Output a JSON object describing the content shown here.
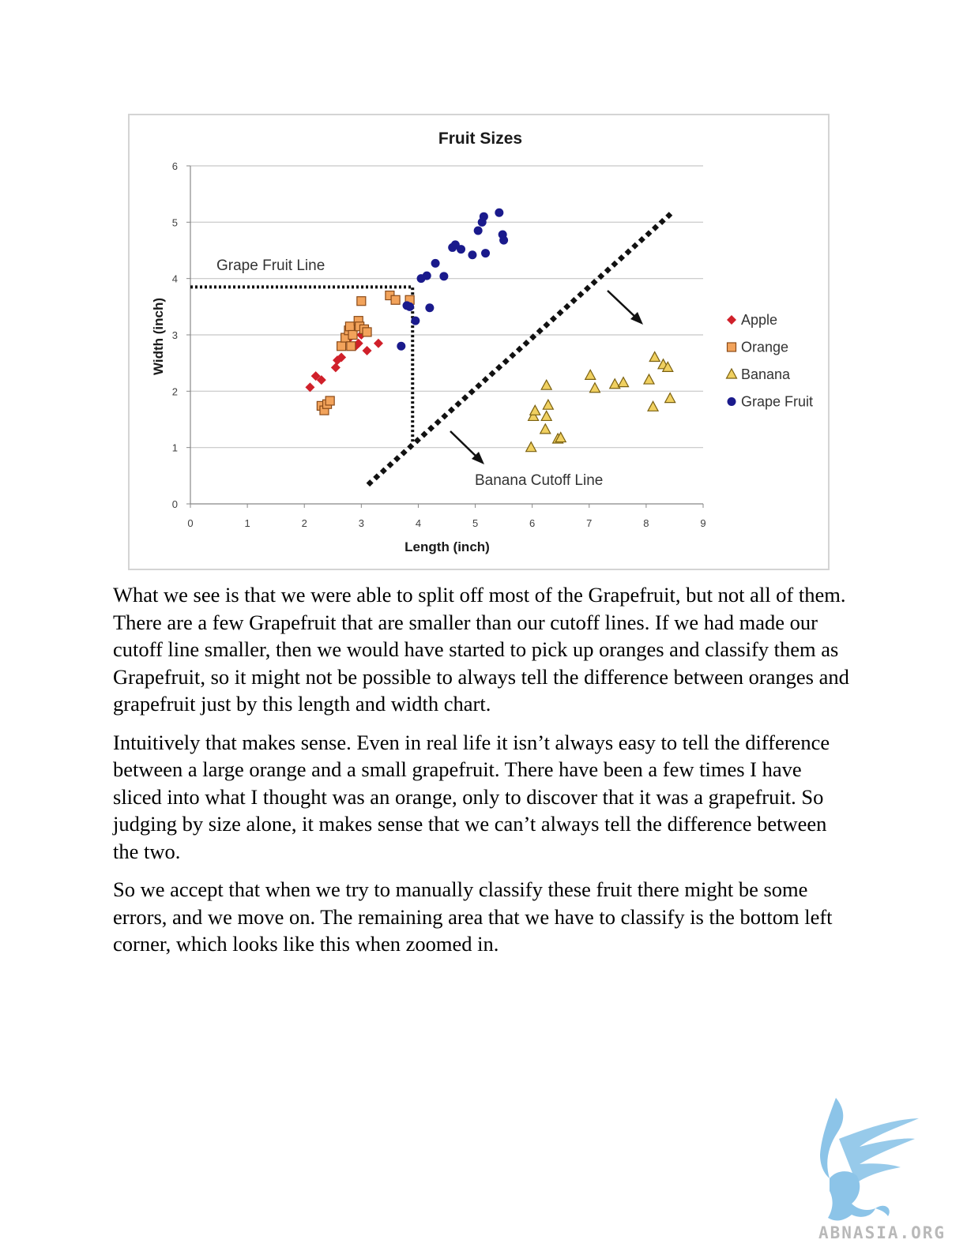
{
  "chart_data": {
    "type": "scatter",
    "title": "Fruit Sizes",
    "xlabel": "Length (inch)",
    "ylabel": "Width (inch)",
    "xlim": [
      0,
      9
    ],
    "ylim": [
      0,
      6
    ],
    "x_ticks": [
      "0",
      "1",
      "2",
      "3",
      "4",
      "5",
      "6",
      "7",
      "8",
      "9"
    ],
    "y_ticks": [
      "0",
      "1",
      "2",
      "3",
      "4",
      "5",
      "6"
    ],
    "grid": "horizontal",
    "legend_position": "right",
    "series": [
      {
        "name": "Apple",
        "marker": "diamond",
        "color": "#d0202a",
        "points": [
          [
            2.1,
            2.07
          ],
          [
            2.2,
            2.27
          ],
          [
            2.3,
            2.2
          ],
          [
            2.55,
            2.42
          ],
          [
            2.58,
            2.55
          ],
          [
            2.65,
            2.6
          ],
          [
            2.8,
            2.95
          ],
          [
            2.9,
            2.8
          ],
          [
            2.95,
            2.85
          ],
          [
            3.0,
            3.0
          ],
          [
            3.1,
            2.72
          ],
          [
            3.3,
            2.85
          ]
        ]
      },
      {
        "name": "Orange",
        "marker": "square",
        "color": "#f2a35b",
        "points": [
          [
            2.3,
            1.74
          ],
          [
            2.35,
            1.66
          ],
          [
            2.4,
            1.77
          ],
          [
            2.45,
            1.83
          ],
          [
            2.65,
            2.8
          ],
          [
            2.72,
            2.95
          ],
          [
            2.78,
            3.08
          ],
          [
            2.8,
            3.15
          ],
          [
            2.82,
            2.8
          ],
          [
            2.85,
            3.0
          ],
          [
            2.95,
            3.25
          ],
          [
            2.97,
            3.15
          ],
          [
            3.0,
            3.6
          ],
          [
            3.05,
            3.1
          ],
          [
            3.1,
            3.05
          ],
          [
            3.5,
            3.7
          ],
          [
            3.6,
            3.62
          ],
          [
            3.85,
            3.62
          ]
        ]
      },
      {
        "name": "Banana",
        "marker": "triangle",
        "color": "#f0d060",
        "points": [
          [
            5.98,
            1.0
          ],
          [
            6.02,
            1.55
          ],
          [
            6.05,
            1.65
          ],
          [
            6.23,
            1.32
          ],
          [
            6.25,
            1.55
          ],
          [
            6.25,
            2.1
          ],
          [
            6.28,
            1.75
          ],
          [
            6.45,
            1.15
          ],
          [
            6.5,
            1.17
          ],
          [
            7.02,
            2.28
          ],
          [
            7.1,
            2.05
          ],
          [
            7.45,
            2.12
          ],
          [
            7.6,
            2.15
          ],
          [
            8.05,
            2.2
          ],
          [
            8.12,
            1.72
          ],
          [
            8.15,
            2.6
          ],
          [
            8.3,
            2.47
          ],
          [
            8.38,
            2.42
          ],
          [
            8.42,
            1.87
          ]
        ]
      },
      {
        "name": "Grape Fruit",
        "marker": "circle",
        "color": "#1a1a8c",
        "points": [
          [
            3.7,
            2.8
          ],
          [
            3.8,
            3.52
          ],
          [
            3.85,
            3.5
          ],
          [
            3.95,
            3.25
          ],
          [
            4.05,
            4.0
          ],
          [
            4.15,
            4.05
          ],
          [
            4.2,
            3.48
          ],
          [
            4.3,
            4.27
          ],
          [
            4.45,
            4.04
          ],
          [
            4.6,
            4.55
          ],
          [
            4.65,
            4.6
          ],
          [
            4.75,
            4.52
          ],
          [
            4.95,
            4.42
          ],
          [
            5.05,
            4.85
          ],
          [
            5.12,
            5.0
          ],
          [
            5.15,
            5.1
          ],
          [
            5.18,
            4.45
          ],
          [
            5.42,
            5.17
          ],
          [
            5.48,
            4.78
          ],
          [
            5.5,
            4.68
          ]
        ]
      }
    ],
    "annotations": {
      "grape_fruit_line_label": "Grape Fruit Line",
      "grape_fruit_line": {
        "y": 3.85,
        "x_end": 3.9,
        "x_drop_to_y": 1.1
      },
      "banana_cutoff_label": "Banana Cutoff Line",
      "banana_cutoff_line": {
        "from": [
          3.15,
          0.37
        ],
        "to": [
          8.4,
          5.12
        ]
      }
    }
  },
  "body": {
    "paragraphs": [
      "What we see is that we were able to split off most of the Grapefruit, but not all of them.  There are a few Grapefruit that are smaller than our cutoff lines.  If we had made our cutoff line smaller, then we would have started to pick up oranges and classify them as Grapefruit, so it might not be possible to always tell the difference between oranges and grapefruit just by this length and width chart.",
      "Intuitively that makes sense.  Even in real life it isn’t always easy to tell the difference between a large orange and a small grapefruit.  There have been a few times I have sliced into what I thought was an orange, only to discover that it was a grapefruit.  So judging by size alone, it makes sense that we can’t always tell the difference between the two.",
      "So we accept that when we try to manually classify these fruit there might be some errors, and we move on.  The remaining area that we have to classify is the bottom left corner, which looks like this when zoomed in."
    ]
  },
  "watermark": {
    "text": "ABNASIA.ORG",
    "icon": "griffin-logo-icon",
    "color": "#8cc4e8"
  }
}
